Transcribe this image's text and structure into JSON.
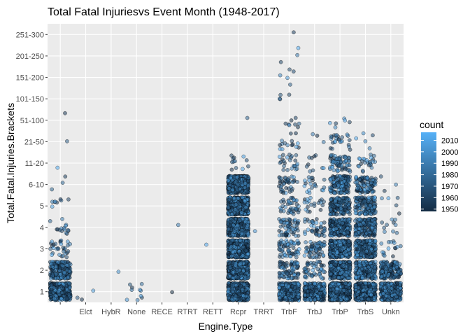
{
  "chart_data": {
    "type": "scatter",
    "title": "Total Fatal Injuriesvs Event Month (1948-2017)",
    "xlabel": "Engine.Type",
    "ylabel": "Total.Fatal.Injuries.Brackets",
    "categories": [
      "",
      "Elct",
      "HybR",
      "None",
      "RECE",
      "RTRT",
      "RETT",
      "Rcpr",
      "TRRT",
      "TrbF",
      "TrbJ",
      "TrbP",
      "TrbS",
      "Unkn"
    ],
    "y_levels": [
      "1",
      "2",
      "3",
      "4",
      "5",
      "6-10",
      "11-20",
      "21-50",
      "51-100",
      "101-150",
      "151-200",
      "201-250",
      "251-300"
    ],
    "legend": {
      "title": "count",
      "position": "right",
      "ticks": [
        1950,
        1960,
        1970,
        1980,
        1990,
        2000,
        2010
      ],
      "range": [
        1948,
        2017
      ],
      "color_low": "#132B43",
      "color_high": "#56B1F7"
    },
    "grid": true,
    "jitter": true,
    "point_counts": {
      "": {
        "1": 420,
        "2": 200,
        "3": 30,
        "4": 15,
        "5": 8,
        "6-10": 3,
        "11-20": 1,
        "21-50": 1,
        "51-100": 1
      },
      "Elct": {
        "1": 3
      },
      "HybR": {
        "2": 1
      },
      "None": {
        "1": 10
      },
      "RECE": {
        "1": 1
      },
      "RTRT": {
        "4": 1
      },
      "RETT": {
        "3": 1
      },
      "Rcpr": {
        "1": 800,
        "2": 700,
        "3": 700,
        "4": 700,
        "5": 700,
        "6-10": 700,
        "11-20": 12,
        "51-100": 1
      },
      "TRRT": {
        "4": 1
      },
      "TrbF": {
        "1": 400,
        "2": 80,
        "3": 60,
        "4": 60,
        "5": 40,
        "6-10": 40,
        "11-20": 25,
        "21-50": 15,
        "51-100": 8,
        "101-150": 4,
        "151-200": 5,
        "201-250": 3,
        "251-300": 1
      },
      "TrbJ": {
        "1": 350,
        "2": 50,
        "3": 60,
        "4": 40,
        "5": 20,
        "6-10": 20,
        "11-20": 10,
        "21-50": 3
      },
      "TrbP": {
        "1": 900,
        "2": 400,
        "3": 350,
        "4": 250,
        "5": 180,
        "6-10": 150,
        "11-20": 70,
        "21-50": 25,
        "51-100": 6
      },
      "TrbS": {
        "1": 600,
        "2": 300,
        "3": 250,
        "4": 200,
        "5": 150,
        "6-10": 100,
        "11-20": 25,
        "21-50": 5
      },
      "Unkn": {
        "1": 400,
        "2": 180,
        "3": 15,
        "4": 10,
        "5": 5,
        "6-10": 3
      }
    }
  }
}
